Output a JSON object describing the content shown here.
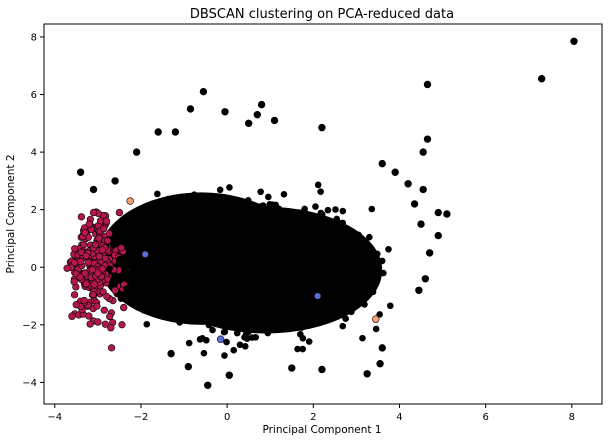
{
  "chart_data": {
    "type": "scatter",
    "title": "DBSCAN clustering on PCA-reduced data",
    "xlabel": "Principal Component 1",
    "ylabel": "Principal Component 2",
    "xlim": [
      -4.25,
      8.7
    ],
    "ylim": [
      -4.75,
      8.45
    ],
    "xticks": [
      -4,
      -2,
      0,
      2,
      4,
      6,
      8
    ],
    "yticks": [
      -4,
      -2,
      0,
      2,
      4,
      6,
      8
    ],
    "grid": false,
    "legend": "none",
    "series": [
      {
        "color": "#000000",
        "points": [
          [
            8.05,
            7.85
          ],
          [
            7.3,
            6.55
          ],
          [
            4.65,
            6.35
          ],
          [
            4.65,
            4.45
          ],
          [
            4.55,
            4.0
          ],
          [
            -0.55,
            6.1
          ],
          [
            -0.85,
            5.5
          ],
          [
            -0.05,
            5.4
          ],
          [
            0.8,
            5.65
          ],
          [
            0.7,
            5.3
          ],
          [
            0.5,
            5.0
          ],
          [
            -1.6,
            4.7
          ],
          [
            1.1,
            5.1
          ],
          [
            2.2,
            4.85
          ],
          [
            -1.2,
            4.7
          ],
          [
            5.1,
            1.85
          ],
          [
            4.9,
            1.9
          ],
          [
            4.55,
            2.7
          ],
          [
            4.9,
            1.1
          ],
          [
            4.7,
            0.5
          ],
          [
            4.6,
            -0.4
          ],
          [
            4.45,
            -0.8
          ],
          [
            3.6,
            -2.8
          ],
          [
            3.55,
            -3.35
          ],
          [
            3.25,
            -3.7
          ],
          [
            2.2,
            -3.55
          ],
          [
            1.5,
            -3.5
          ],
          [
            0.05,
            -3.75
          ],
          [
            -0.45,
            -4.1
          ],
          [
            -0.9,
            -3.45
          ],
          [
            -1.3,
            -3.0
          ],
          [
            -2.6,
            3.0
          ],
          [
            -3.1,
            2.7
          ],
          [
            -2.1,
            4.0
          ],
          [
            -3.4,
            3.3
          ],
          [
            3.6,
            3.6
          ],
          [
            3.9,
            3.3
          ],
          [
            4.2,
            2.9
          ],
          [
            4.35,
            2.2
          ],
          [
            4.5,
            1.5
          ]
        ]
      },
      {
        "color": "#b5164e",
        "points": [
          [
            -3.6,
            -1.7
          ],
          [
            -3.5,
            -1.3
          ],
          [
            -3.3,
            1.2
          ],
          [
            -3.1,
            1.9
          ],
          [
            -2.9,
            0.6
          ],
          [
            -3.0,
            -1.9
          ],
          [
            -2.7,
            -2.1
          ],
          [
            -3.55,
            -0.5
          ],
          [
            -3.4,
            0.2
          ],
          [
            -2.8,
            1.6
          ],
          [
            -2.5,
            1.9
          ],
          [
            -2.4,
            -1.4
          ],
          [
            -2.6,
            -0.8
          ],
          [
            -3.0,
            -0.2
          ],
          [
            -3.2,
            1.5
          ]
        ]
      },
      {
        "color": "#f4a070",
        "points": [
          [
            -2.25,
            2.3
          ],
          [
            3.45,
            -1.8
          ]
        ]
      },
      {
        "color": "#5a6fd6",
        "points": [
          [
            -1.9,
            0.45
          ],
          [
            -0.15,
            -2.5
          ],
          [
            2.1,
            -1.0
          ]
        ]
      }
    ]
  }
}
